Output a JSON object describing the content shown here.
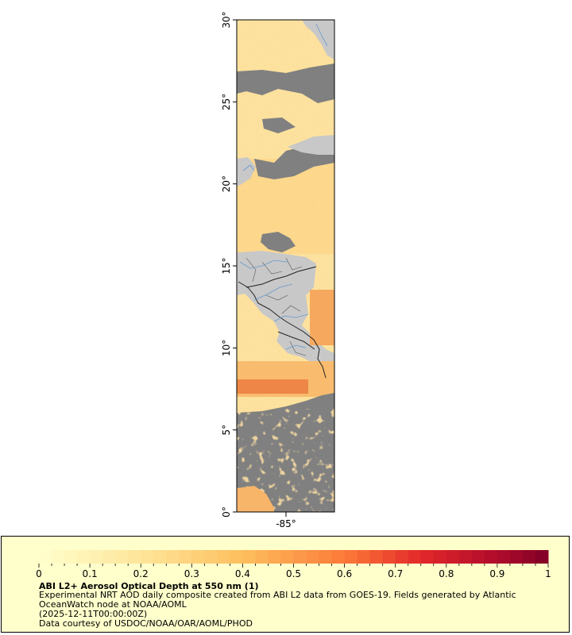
{
  "map": {
    "lat_ticks": [
      "0°",
      "5°",
      "10°",
      "15°",
      "20°",
      "25°",
      "30°"
    ],
    "lon_ticks": [
      "-85°"
    ],
    "colors": {
      "ocean_no_data": "#808080",
      "land": "#c8c8c8",
      "low_aod": "#fde9a8",
      "mid_aod": "#fdc870",
      "high_aod": "#e8501e",
      "borders": "#222222",
      "rivers": "#6699cc"
    }
  },
  "legend": {
    "colorbar_ticks": [
      "0",
      "0.1",
      "0.2",
      "0.3",
      "0.4",
      "0.5",
      "0.6",
      "0.7",
      "0.8",
      "0.9",
      "1"
    ],
    "colormap_range": [
      0,
      1
    ],
    "title": "ABI L2+ Aerosol Optical Depth at 550 nm (1)",
    "description": "Experimental NRT AOD daily composite created from ABI L2 data from GOES-19. Fields generated by Atlantic OceanWatch node at NOAA/AOML",
    "time": "(2025-12-11T00:00:00Z)",
    "credit": "Data courtesy of USDOC/NOAA/OAR/AOML/PHOD"
  }
}
